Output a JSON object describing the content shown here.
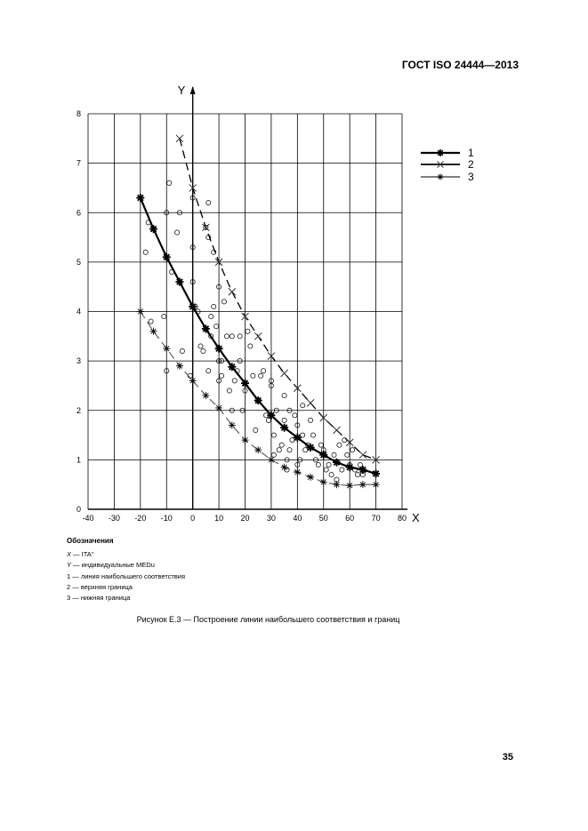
{
  "header": {
    "standard": "ГОСТ ISO 24444—2013"
  },
  "legend": {
    "title": "Обозначения",
    "items": [
      {
        "symbol": "X",
        "text": " — ITA°"
      },
      {
        "symbol": "Y",
        "text": " — индивидуальные MEDu"
      },
      {
        "symbol": "",
        "text": "1 — линия наибольшего соответствия"
      },
      {
        "symbol": "",
        "text": "2 — верхняя граница"
      },
      {
        "symbol": "",
        "text": "3 — нижняя граница"
      }
    ]
  },
  "caption": "Рисунок Е.3 — Построение линии наибольшего соответствия и границ",
  "page_number": "35",
  "chart_data": {
    "type": "scatter",
    "xlabel": "X",
    "ylabel": "Y",
    "xlim": [
      -40,
      80
    ],
    "ylim": [
      0,
      8
    ],
    "x_ticks": [
      "-40",
      "-30",
      "-20",
      "-10",
      "0",
      "10",
      "20",
      "30",
      "40",
      "50",
      "60",
      "70",
      "80"
    ],
    "y_ticks": [
      "0",
      "1",
      "2",
      "3",
      "4",
      "5",
      "6",
      "7",
      "8"
    ],
    "grid": true,
    "series": [
      {
        "name": "1",
        "style": "best-fit",
        "color": "#000000",
        "x": [
          -20,
          -15,
          -10,
          -5,
          0,
          5,
          10,
          15,
          20,
          25,
          30,
          35,
          40,
          45,
          50,
          55,
          60,
          65,
          70
        ],
        "y": [
          6.3,
          5.67,
          5.1,
          4.6,
          4.1,
          3.65,
          3.25,
          2.88,
          2.55,
          2.2,
          1.9,
          1.65,
          1.45,
          1.25,
          1.1,
          0.95,
          0.85,
          0.8,
          0.72
        ]
      },
      {
        "name": "2",
        "style": "upper",
        "color": "#000000",
        "x": [
          -5,
          0,
          5,
          10,
          15,
          20,
          25,
          30,
          35,
          40,
          45,
          50,
          55,
          60,
          65,
          70
        ],
        "y": [
          7.5,
          6.5,
          5.7,
          5.0,
          4.4,
          3.9,
          3.5,
          3.1,
          2.75,
          2.45,
          2.15,
          1.85,
          1.6,
          1.35,
          1.1,
          1.0
        ]
      },
      {
        "name": "3",
        "style": "lower",
        "color": "#555555",
        "x": [
          -20,
          -15,
          -10,
          -5,
          0,
          5,
          10,
          15,
          20,
          25,
          30,
          35,
          40,
          45,
          50,
          55,
          60,
          65,
          70
        ],
        "y": [
          4.0,
          3.6,
          3.25,
          2.9,
          2.6,
          2.3,
          2.05,
          1.7,
          1.4,
          1.2,
          1.0,
          0.85,
          0.75,
          0.65,
          0.55,
          0.5,
          0.48,
          0.5,
          0.5
        ]
      },
      {
        "name": "",
        "style": "observations",
        "color": "#000000",
        "x": [
          -18,
          -17,
          -16,
          -11,
          -10,
          -10,
          -9,
          -8,
          -6,
          -5,
          -4,
          -1,
          0,
          0,
          0,
          1,
          2,
          3,
          4,
          5,
          6,
          6,
          6,
          7,
          7,
          8,
          8,
          9,
          10,
          10,
          10,
          11,
          11,
          12,
          13,
          14,
          15,
          15,
          16,
          17,
          18,
          18,
          19,
          20,
          21,
          22,
          23,
          24,
          25,
          26,
          27,
          28,
          29,
          30,
          30,
          31,
          31,
          32,
          33,
          34,
          35,
          35,
          36,
          36,
          37,
          37,
          38,
          39,
          40,
          40,
          41,
          42,
          42,
          43,
          44,
          45,
          46,
          47,
          48,
          49,
          50,
          51,
          52,
          53,
          54,
          55,
          56,
          57,
          58,
          59,
          60,
          61,
          62,
          63,
          64,
          65
        ],
        "y": [
          5.2,
          5.8,
          3.8,
          3.9,
          6.0,
          2.8,
          6.6,
          4.8,
          5.6,
          6.0,
          3.2,
          2.7,
          6.3,
          5.3,
          4.6,
          4.1,
          4.0,
          3.3,
          3.2,
          5.7,
          5.5,
          2.8,
          6.2,
          3.5,
          3.9,
          5.2,
          4.1,
          3.7,
          3.0,
          2.6,
          4.5,
          3.0,
          2.7,
          4.2,
          3.5,
          2.4,
          2.0,
          3.5,
          2.6,
          2.8,
          3.5,
          3.0,
          2.0,
          2.4,
          3.6,
          3.3,
          2.7,
          1.6,
          2.2,
          2.7,
          2.8,
          1.9,
          1.8,
          2.5,
          2.6,
          1.5,
          1.1,
          2.0,
          1.2,
          1.3,
          2.3,
          1.8,
          1.0,
          0.8,
          1.2,
          2.0,
          1.4,
          1.9,
          0.9,
          1.7,
          1.0,
          1.5,
          2.1,
          1.2,
          1.3,
          1.8,
          1.5,
          1.0,
          0.9,
          1.3,
          1.2,
          0.8,
          0.9,
          0.7,
          1.1,
          0.6,
          1.3,
          0.8,
          1.4,
          1.1,
          0.9,
          1.2,
          0.8,
          0.7,
          0.9,
          0.7
        ]
      }
    ]
  }
}
